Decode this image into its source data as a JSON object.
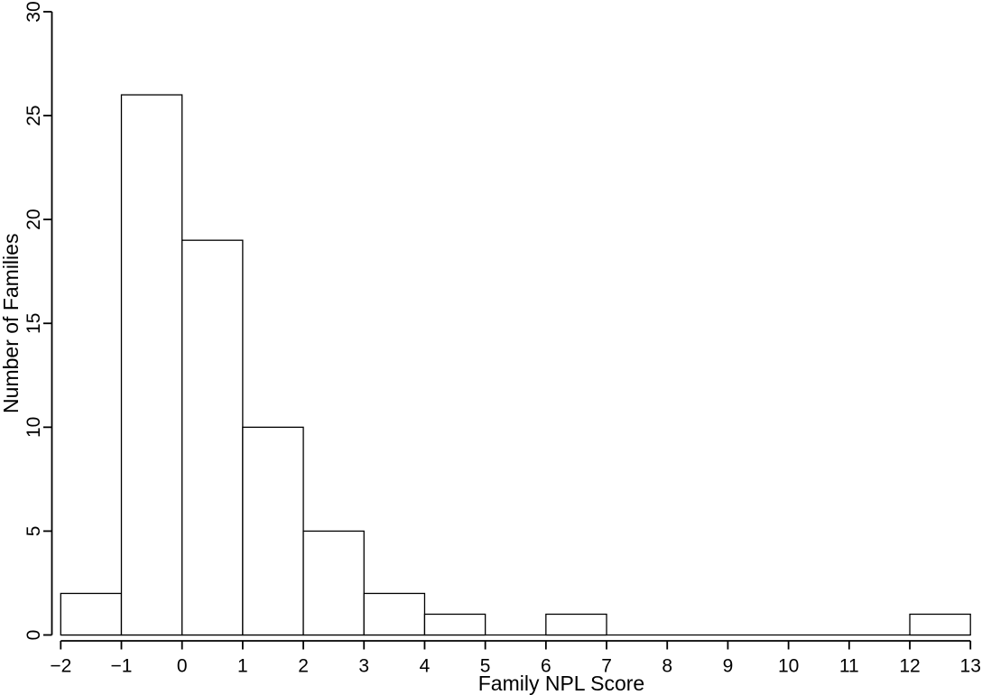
{
  "chart_data": {
    "type": "bar",
    "subtype": "histogram",
    "title": "",
    "xlabel": "Family NPL Score",
    "ylabel": "Number of Families",
    "bin_edges": [
      -2,
      -1,
      0,
      1,
      2,
      3,
      4,
      5,
      6,
      7,
      8,
      9,
      10,
      11,
      12,
      13
    ],
    "counts": [
      2,
      26,
      19,
      10,
      5,
      2,
      1,
      0,
      1,
      0,
      0,
      0,
      0,
      0,
      1
    ],
    "xlim": [
      -2,
      13
    ],
    "ylim": [
      0,
      30
    ],
    "x_ticks": [
      {
        "value": -2,
        "label": "−2"
      },
      {
        "value": -1,
        "label": "−1"
      },
      {
        "value": 0,
        "label": "0"
      },
      {
        "value": 1,
        "label": "1"
      },
      {
        "value": 2,
        "label": "2"
      },
      {
        "value": 3,
        "label": "3"
      },
      {
        "value": 4,
        "label": "4"
      },
      {
        "value": 5,
        "label": "5"
      },
      {
        "value": 6,
        "label": "6"
      },
      {
        "value": 7,
        "label": "7"
      },
      {
        "value": 8,
        "label": "8"
      },
      {
        "value": 9,
        "label": "9"
      },
      {
        "value": 10,
        "label": "10"
      },
      {
        "value": 11,
        "label": "11"
      },
      {
        "value": 12,
        "label": "12"
      },
      {
        "value": 13,
        "label": "13"
      }
    ],
    "y_ticks": [
      {
        "value": 0,
        "label": "0"
      },
      {
        "value": 5,
        "label": "5"
      },
      {
        "value": 10,
        "label": "10"
      },
      {
        "value": 15,
        "label": "15"
      },
      {
        "value": 20,
        "label": "20"
      },
      {
        "value": 25,
        "label": "25"
      },
      {
        "value": 30,
        "label": "30"
      }
    ],
    "grid": false,
    "legend": null,
    "background_color": "#ffffff",
    "bar_fill_color": "#ffffff",
    "bar_stroke_color": "#000000",
    "axis_color": "#000000",
    "text_color": "#000000",
    "y_tick_label_rotation": -90,
    "y_axis_title_rotation": -90
  }
}
